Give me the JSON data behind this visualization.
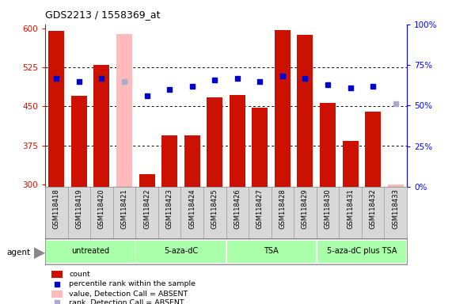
{
  "title": "GDS2213 / 1558369_at",
  "samples": [
    "GSM118418",
    "GSM118419",
    "GSM118420",
    "GSM118421",
    "GSM118422",
    "GSM118423",
    "GSM118424",
    "GSM118425",
    "GSM118426",
    "GSM118427",
    "GSM118428",
    "GSM118429",
    "GSM118430",
    "GSM118431",
    "GSM118432",
    "GSM118433"
  ],
  "values": [
    596,
    470,
    530,
    590,
    320,
    395,
    395,
    468,
    472,
    447,
    597,
    588,
    456,
    383,
    440,
    300
  ],
  "absent_mask": [
    false,
    false,
    false,
    true,
    false,
    false,
    false,
    false,
    false,
    false,
    false,
    false,
    false,
    false,
    false,
    true
  ],
  "percentile_ranks": [
    67,
    65,
    67,
    65,
    56,
    60,
    62,
    66,
    67,
    65,
    68,
    67,
    63,
    61,
    62,
    51
  ],
  "absent_rank_mask": [
    false,
    false,
    false,
    true,
    false,
    false,
    false,
    false,
    false,
    false,
    false,
    false,
    false,
    false,
    false,
    true
  ],
  "groups": [
    {
      "label": "untreated",
      "start": 0,
      "end": 4
    },
    {
      "label": "5-aza-dC",
      "start": 4,
      "end": 8
    },
    {
      "label": "TSA",
      "start": 8,
      "end": 12
    },
    {
      "label": "5-aza-dC plus TSA",
      "start": 12,
      "end": 16
    }
  ],
  "bar_color_present": "#cc1100",
  "bar_color_absent": "#ffbbbb",
  "dot_color_present": "#0000cc",
  "dot_color_absent": "#aaaacc",
  "ylim_left": [
    295,
    608
  ],
  "ylim_right": [
    0,
    100
  ],
  "yticks_left": [
    300,
    375,
    450,
    525,
    600
  ],
  "yticks_right": [
    0,
    25,
    50,
    75,
    100
  ],
  "ytick_labels_right": [
    "0%",
    "25%",
    "50%",
    "75%",
    "100%"
  ],
  "background_color": "#ffffff",
  "group_color": "#aaffaa",
  "group_border_color": "#ffffff",
  "bar_baseline": 295
}
